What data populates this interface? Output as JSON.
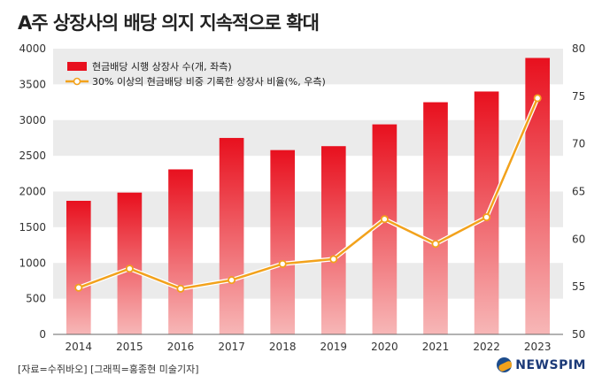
{
  "title": "A주 상장사의 배당 의지 지속적으로 확대",
  "source": "[자료=수쥐바오] [그래픽=홍종현 미술기자]",
  "logo_text": "NEWSPIM",
  "colors": {
    "bar": "#e8101e",
    "line": "#f2a21c",
    "band": "#ebebeb"
  },
  "chart_data": {
    "type": "bar+line",
    "categories": [
      "2014",
      "2015",
      "2016",
      "2017",
      "2018",
      "2019",
      "2020",
      "2021",
      "2022",
      "2023"
    ],
    "series": [
      {
        "name": "현금배당 시행 상장사 수(개, 좌측)",
        "type": "bar",
        "axis": "left",
        "values": [
          1870,
          1985,
          2310,
          2750,
          2580,
          2635,
          2940,
          3250,
          3400,
          3870
        ]
      },
      {
        "name": "30% 이상의 현금배당 비중 기록한 상장사 비율(%, 우측)",
        "type": "line",
        "axis": "right",
        "values": [
          54.9,
          56.9,
          54.8,
          55.7,
          57.4,
          57.9,
          62.1,
          59.5,
          62.3,
          74.8
        ]
      }
    ],
    "y_left": {
      "min": 0,
      "max": 4000,
      "ticks": [
        "0",
        "500",
        "1000",
        "1500",
        "2000",
        "2500",
        "3000",
        "3500",
        "4000"
      ]
    },
    "y_right": {
      "min": 50,
      "max": 80,
      "ticks": [
        "50",
        "55",
        "60",
        "65",
        "70",
        "75",
        "80"
      ]
    },
    "legend_position": "top-left",
    "grid": "alternating horizontal bands"
  }
}
